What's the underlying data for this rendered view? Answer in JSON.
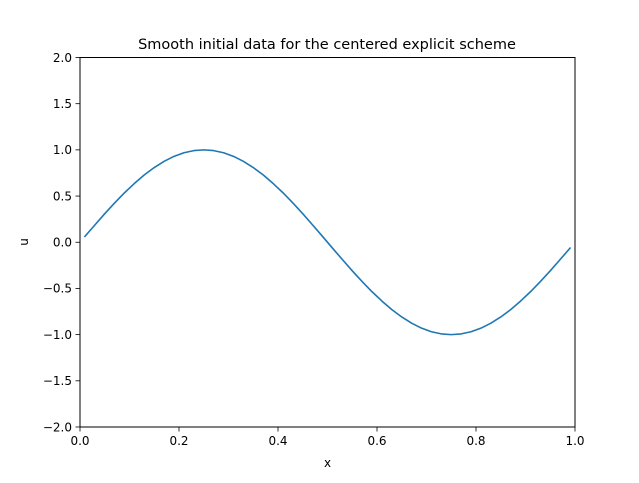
{
  "chart_data": {
    "type": "line",
    "title": "Smooth initial data for the centered explicit scheme",
    "xlabel": "x",
    "ylabel": "u",
    "xlim": [
      0.0,
      1.0
    ],
    "ylim": [
      -2.0,
      2.0
    ],
    "grid": false,
    "legend": "none",
    "x_ticks": [
      {
        "value": 0.0,
        "label": "0.0"
      },
      {
        "value": 0.2,
        "label": "0.2"
      },
      {
        "value": 0.4,
        "label": "0.4"
      },
      {
        "value": 0.6,
        "label": "0.6"
      },
      {
        "value": 0.8,
        "label": "0.8"
      },
      {
        "value": 1.0,
        "label": "1.0"
      }
    ],
    "y_ticks": [
      {
        "value": -2.0,
        "label": "−2.0"
      },
      {
        "value": -1.5,
        "label": "−1.5"
      },
      {
        "value": -1.0,
        "label": "−1.0"
      },
      {
        "value": -0.5,
        "label": "−0.5"
      },
      {
        "value": 0.0,
        "label": "0.0"
      },
      {
        "value": 0.5,
        "label": "0.5"
      },
      {
        "value": 1.0,
        "label": "1.0"
      },
      {
        "value": 1.5,
        "label": "1.5"
      },
      {
        "value": 2.0,
        "label": "2.0"
      }
    ],
    "series": [
      {
        "color": "#1f77b4",
        "x": [
          0.01,
          0.03,
          0.05,
          0.07,
          0.09,
          0.11,
          0.13,
          0.15,
          0.17,
          0.19,
          0.21,
          0.23,
          0.25,
          0.27,
          0.29,
          0.31,
          0.33,
          0.35,
          0.37,
          0.39,
          0.41,
          0.43,
          0.45,
          0.47,
          0.49,
          0.51,
          0.53,
          0.55,
          0.57,
          0.59,
          0.61,
          0.63,
          0.65,
          0.67,
          0.69,
          0.71,
          0.73,
          0.75,
          0.77,
          0.79,
          0.81,
          0.83,
          0.85,
          0.87,
          0.89,
          0.91,
          0.93,
          0.95,
          0.97,
          0.99
        ],
        "y": [
          0.063,
          0.187,
          0.309,
          0.426,
          0.536,
          0.637,
          0.729,
          0.809,
          0.876,
          0.93,
          0.969,
          0.992,
          1.0,
          0.992,
          0.969,
          0.93,
          0.876,
          0.809,
          0.729,
          0.637,
          0.536,
          0.426,
          0.309,
          0.187,
          0.063,
          -0.063,
          -0.187,
          -0.309,
          -0.426,
          -0.536,
          -0.637,
          -0.729,
          -0.809,
          -0.876,
          -0.93,
          -0.969,
          -0.992,
          -1.0,
          -0.992,
          -0.969,
          -0.93,
          -0.876,
          -0.809,
          -0.729,
          -0.637,
          -0.536,
          -0.426,
          -0.309,
          -0.187,
          -0.063
        ]
      }
    ]
  }
}
